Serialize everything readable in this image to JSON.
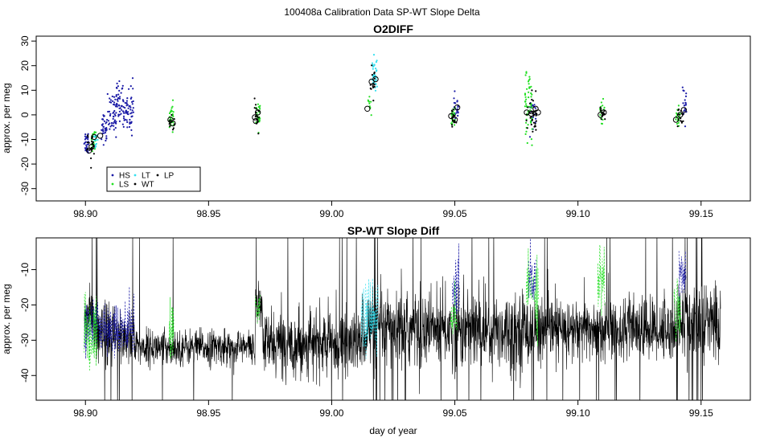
{
  "figure_title": "100408a   Calibration Data SP-WT Slope Delta",
  "colors": {
    "HS": "#1a1aa6",
    "LS": "#22e022",
    "LT": "#33e0f0",
    "WT": "#000000",
    "LP": "#000000",
    "line": "#000000"
  },
  "chart_data": [
    {
      "type": "scatter",
      "title": "O2DIFF",
      "xlabel": "",
      "ylabel": "approx. per meg",
      "xlim": [
        98.88,
        99.17
      ],
      "ylim": [
        -35,
        32
      ],
      "xticks": [
        98.9,
        98.95,
        99.0,
        99.05,
        99.1,
        99.15
      ],
      "xtick_labels": [
        "98.90",
        "98.95",
        "99.00",
        "99.05",
        "99.10",
        "99.15"
      ],
      "yticks": [
        -30,
        -20,
        -10,
        0,
        10,
        20,
        30
      ],
      "ytick_labels": [
        "-30",
        "-20",
        "-10",
        "0",
        "10",
        "20",
        "30"
      ],
      "grid": false,
      "legend": {
        "placement": "bottom-left",
        "entries": [
          "HS",
          "LT",
          "LP",
          "LS",
          "WT"
        ]
      },
      "series": [
        {
          "name": "HS",
          "clusters": [
            {
              "x0": 98.8995,
              "x1": 98.9012,
              "mean": -11,
              "sd": 2.5,
              "n": 28
            },
            {
              "x0": 98.9065,
              "x1": 98.909,
              "mean": -5,
              "sd": 3,
              "n": 35
            },
            {
              "x0": 98.909,
              "x1": 98.9125,
              "mean": 0,
              "sd": 4,
              "n": 45
            },
            {
              "x0": 98.9125,
              "x1": 98.9155,
              "mean": 5,
              "sd": 4,
              "n": 45
            },
            {
              "x0": 98.9155,
              "x1": 98.9195,
              "mean": 2,
              "sd": 4.5,
              "n": 55
            },
            {
              "x0": 99.0495,
              "x1": 99.0515,
              "mean": 3,
              "sd": 2.5,
              "n": 22
            },
            {
              "x0": 99.0805,
              "x1": 99.083,
              "mean": 1.5,
              "sd": 3,
              "n": 20
            },
            {
              "x0": 99.1425,
              "x1": 99.1445,
              "mean": 3,
              "sd": 3,
              "n": 20
            }
          ]
        },
        {
          "name": "LS",
          "clusters": [
            {
              "x0": 98.9025,
              "x1": 98.9045,
              "mean": -11,
              "sd": 3,
              "n": 22
            },
            {
              "x0": 98.934,
              "x1": 98.9358,
              "mean": -1,
              "sd": 2.5,
              "n": 30
            },
            {
              "x0": 98.9692,
              "x1": 98.971,
              "mean": 0,
              "sd": 2.5,
              "n": 25
            },
            {
              "x0": 99.0148,
              "x1": 99.0162,
              "mean": 3,
              "sd": 3,
              "n": 10
            },
            {
              "x0": 99.0485,
              "x1": 99.0502,
              "mean": -1,
              "sd": 2.5,
              "n": 20
            },
            {
              "x0": 99.0785,
              "x1": 99.0815,
              "mean": 3,
              "sd": 6,
              "n": 55
            },
            {
              "x0": 99.1088,
              "x1": 99.1108,
              "mean": 1,
              "sd": 2.5,
              "n": 20
            },
            {
              "x0": 99.1395,
              "x1": 99.1415,
              "mean": -1,
              "sd": 2.5,
              "n": 18
            }
          ]
        },
        {
          "name": "LT",
          "clusters": [
            {
              "x0": 98.9035,
              "x1": 98.905,
              "mean": -10,
              "sd": 3,
              "n": 12
            },
            {
              "x0": 99.0165,
              "x1": 99.0185,
              "mean": 16,
              "sd": 4,
              "n": 35
            }
          ]
        },
        {
          "name": "WT",
          "clusters": [
            {
              "x0": 98.9005,
              "x1": 98.9035,
              "mean": -13,
              "sd": 3,
              "n": 22
            },
            {
              "x0": 98.934,
              "x1": 98.9362,
              "mean": -3,
              "sd": 2,
              "n": 12
            },
            {
              "x0": 98.9685,
              "x1": 98.9705,
              "mean": -1,
              "sd": 2.5,
              "n": 15
            },
            {
              "x0": 99.0155,
              "x1": 99.0175,
              "mean": 13,
              "sd": 3,
              "n": 15
            },
            {
              "x0": 99.0488,
              "x1": 99.0508,
              "mean": -1,
              "sd": 2,
              "n": 15
            },
            {
              "x0": 99.079,
              "x1": 99.0835,
              "mean": 0,
              "sd": 4,
              "n": 35
            },
            {
              "x0": 99.109,
              "x1": 99.111,
              "mean": 0.5,
              "sd": 1.5,
              "n": 12
            },
            {
              "x0": 99.1405,
              "x1": 99.143,
              "mean": -1,
              "sd": 2,
              "n": 15
            }
          ]
        },
        {
          "name": "LP",
          "role": "means (open circles)",
          "points": [
            [
              98.9015,
              -14.5
            ],
            [
              98.9025,
              -13
            ],
            [
              98.9035,
              -9
            ],
            [
              98.906,
              -8.5
            ],
            [
              98.9345,
              -2
            ],
            [
              98.9355,
              -3.5
            ],
            [
              98.9688,
              -1
            ],
            [
              98.9692,
              -2.5
            ],
            [
              98.97,
              1
            ],
            [
              99.0145,
              2.5
            ],
            [
              99.0162,
              13.5
            ],
            [
              99.0178,
              14.5
            ],
            [
              99.0485,
              -0.5
            ],
            [
              99.05,
              -2
            ],
            [
              99.051,
              3
            ],
            [
              99.0792,
              1
            ],
            [
              99.081,
              0.5
            ],
            [
              99.0828,
              2.5
            ],
            [
              99.0838,
              1
            ],
            [
              99.1092,
              0
            ],
            [
              99.1105,
              1
            ],
            [
              99.1398,
              -2
            ],
            [
              99.1415,
              0
            ],
            [
              99.143,
              2
            ]
          ]
        }
      ]
    },
    {
      "type": "line",
      "title": "SP-WT Slope Diff",
      "xlabel": "day of year",
      "ylabel": "approx. per meg",
      "xlim": [
        98.88,
        99.17
      ],
      "ylim": [
        -47,
        -1
      ],
      "xticks": [
        98.9,
        98.95,
        99.0,
        99.05,
        99.1,
        99.15
      ],
      "xtick_labels": [
        "98.90",
        "98.95",
        "99.00",
        "99.05",
        "99.10",
        "99.15"
      ],
      "yticks": [
        -40,
        -30,
        -20,
        -10
      ],
      "ytick_labels": [
        "-40",
        "-30",
        "-20",
        "-10"
      ],
      "grid": false,
      "segments": [
        {
          "x0": 98.8995,
          "x1": 98.9035,
          "mean": -23,
          "sd": 3.5,
          "spike": 0.02
        },
        {
          "x0": 98.9035,
          "x1": 98.92,
          "mean": -29,
          "sd": 4.5,
          "spike": 0.04
        },
        {
          "x0": 98.92,
          "x1": 98.969,
          "mean": -32,
          "sd": 2.5,
          "spike": 0.008
        },
        {
          "x0": 98.969,
          "x1": 98.972,
          "mean": -21,
          "sd": 3,
          "spike": 0.03
        },
        {
          "x0": 98.972,
          "x1": 99.012,
          "mean": -31,
          "sd": 4.5,
          "spike": 0.015
        },
        {
          "x0": 99.012,
          "x1": 99.08,
          "mean": -27,
          "sd": 5.5,
          "spike": 0.03
        },
        {
          "x0": 99.08,
          "x1": 99.14,
          "mean": -27,
          "sd": 4.5,
          "spike": 0.02
        },
        {
          "x0": 99.14,
          "x1": 99.158,
          "mean": -25,
          "sd": 6,
          "spike": 0.05
        }
      ],
      "color_overlays": [
        {
          "name": "HS",
          "x0": 98.8995,
          "x1": 98.92,
          "mean": -26,
          "sd": 4
        },
        {
          "name": "LS",
          "x0": 98.8995,
          "x1": 98.905,
          "mean": -28,
          "sd": 5
        },
        {
          "name": "LS",
          "x0": 98.934,
          "x1": 98.936,
          "mean": -27,
          "sd": 5
        },
        {
          "name": "LS",
          "x0": 98.969,
          "x1": 98.971,
          "mean": -21,
          "sd": 3
        },
        {
          "name": "LT",
          "x0": 99.012,
          "x1": 99.019,
          "mean": -24,
          "sd": 5
        },
        {
          "name": "HS",
          "x0": 99.049,
          "x1": 99.052,
          "mean": -16,
          "sd": 5
        },
        {
          "name": "LS",
          "x0": 99.048,
          "x1": 99.051,
          "mean": -24,
          "sd": 4
        },
        {
          "name": "LS",
          "x0": 99.079,
          "x1": 99.084,
          "mean": -15,
          "sd": 6
        },
        {
          "name": "HS",
          "x0": 99.08,
          "x1": 99.083,
          "mean": -12,
          "sd": 5
        },
        {
          "name": "LS",
          "x0": 99.108,
          "x1": 99.111,
          "mean": -13,
          "sd": 5
        },
        {
          "name": "HS",
          "x0": 99.141,
          "x1": 99.144,
          "mean": -11,
          "sd": 4
        },
        {
          "name": "LS",
          "x0": 99.139,
          "x1": 99.142,
          "mean": -20,
          "sd": 5
        }
      ]
    }
  ]
}
